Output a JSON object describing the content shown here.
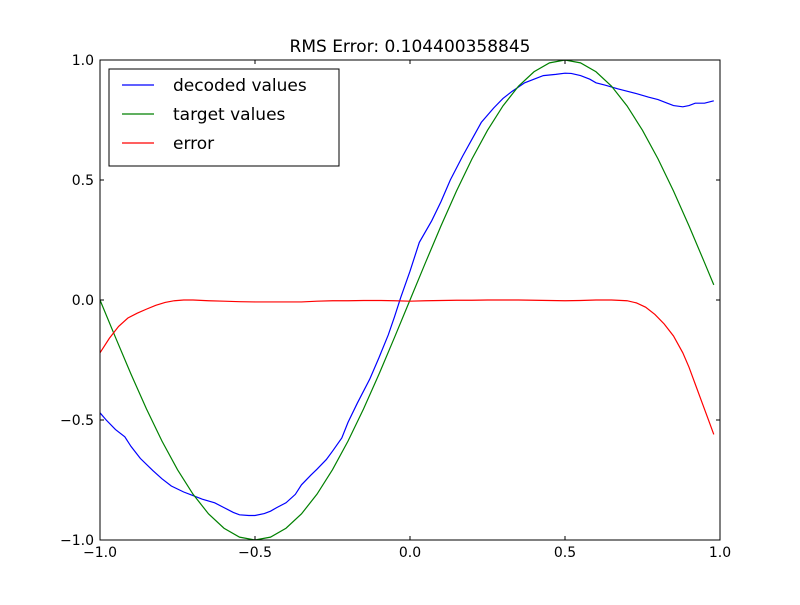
{
  "chart_data": {
    "type": "line",
    "title": "RMS Error: 0.104400358845",
    "xlabel": "",
    "ylabel": "",
    "xlim": [
      -1.0,
      1.0
    ],
    "ylim": [
      -1.0,
      1.0
    ],
    "xticks": [
      -1.0,
      -0.5,
      0.0,
      0.5,
      1.0
    ],
    "xtick_labels": [
      "−1.0",
      "−0.5",
      "0.0",
      "0.5",
      "1.0"
    ],
    "yticks": [
      -1.0,
      -0.5,
      0.0,
      0.5,
      1.0
    ],
    "ytick_labels": [
      "−1.0",
      "−0.5",
      "0.0",
      "0.5",
      "1.0"
    ],
    "grid": false,
    "legend_position": "upper-left",
    "series": [
      {
        "name": "decoded values",
        "color": "#0000ff",
        "x": [
          -1.0,
          -0.98,
          -0.95,
          -0.92,
          -0.9,
          -0.87,
          -0.83,
          -0.8,
          -0.77,
          -0.73,
          -0.7,
          -0.67,
          -0.63,
          -0.6,
          -0.57,
          -0.55,
          -0.52,
          -0.5,
          -0.47,
          -0.45,
          -0.43,
          -0.4,
          -0.37,
          -0.35,
          -0.32,
          -0.3,
          -0.27,
          -0.25,
          -0.22,
          -0.2,
          -0.17,
          -0.13,
          -0.1,
          -0.07,
          -0.05,
          -0.03,
          0.0,
          0.03,
          0.07,
          0.1,
          0.13,
          0.17,
          0.2,
          0.23,
          0.27,
          0.3,
          0.33,
          0.37,
          0.4,
          0.43,
          0.47,
          0.5,
          0.52,
          0.55,
          0.58,
          0.6,
          0.63,
          0.67,
          0.7,
          0.73,
          0.77,
          0.8,
          0.83,
          0.85,
          0.88,
          0.9,
          0.92,
          0.95,
          0.98
        ],
        "y": [
          -0.47,
          -0.5,
          -0.54,
          -0.57,
          -0.61,
          -0.66,
          -0.71,
          -0.745,
          -0.775,
          -0.8,
          -0.815,
          -0.83,
          -0.845,
          -0.865,
          -0.885,
          -0.895,
          -0.898,
          -0.898,
          -0.89,
          -0.88,
          -0.865,
          -0.845,
          -0.81,
          -0.77,
          -0.73,
          -0.705,
          -0.665,
          -0.63,
          -0.575,
          -0.51,
          -0.43,
          -0.33,
          -0.24,
          -0.145,
          -0.07,
          0.01,
          0.12,
          0.24,
          0.33,
          0.41,
          0.5,
          0.6,
          0.67,
          0.74,
          0.8,
          0.84,
          0.87,
          0.905,
          0.92,
          0.935,
          0.94,
          0.945,
          0.944,
          0.935,
          0.92,
          0.905,
          0.895,
          0.88,
          0.87,
          0.86,
          0.845,
          0.835,
          0.82,
          0.81,
          0.805,
          0.81,
          0.82,
          0.82,
          0.83
        ]
      },
      {
        "name": "target values",
        "color": "#008000",
        "x": [
          -1.0,
          -0.95,
          -0.9,
          -0.85,
          -0.8,
          -0.75,
          -0.7,
          -0.65,
          -0.6,
          -0.55,
          -0.5,
          -0.45,
          -0.4,
          -0.35,
          -0.3,
          -0.25,
          -0.2,
          -0.15,
          -0.1,
          -0.05,
          0.0,
          0.05,
          0.1,
          0.15,
          0.2,
          0.25,
          0.3,
          0.35,
          0.4,
          0.45,
          0.5,
          0.55,
          0.6,
          0.65,
          0.7,
          0.75,
          0.8,
          0.85,
          0.9,
          0.95,
          0.98
        ],
        "y": [
          0.0,
          -0.156,
          -0.309,
          -0.454,
          -0.588,
          -0.707,
          -0.809,
          -0.891,
          -0.951,
          -0.988,
          -1.0,
          -0.988,
          -0.951,
          -0.891,
          -0.809,
          -0.707,
          -0.588,
          -0.454,
          -0.309,
          -0.156,
          0.0,
          0.156,
          0.309,
          0.454,
          0.588,
          0.707,
          0.809,
          0.891,
          0.951,
          0.988,
          1.0,
          0.988,
          0.951,
          0.891,
          0.809,
          0.707,
          0.588,
          0.454,
          0.309,
          0.156,
          0.063
        ]
      },
      {
        "name": "error",
        "color": "#ff0000",
        "x": [
          -1.0,
          -0.97,
          -0.94,
          -0.91,
          -0.88,
          -0.85,
          -0.82,
          -0.79,
          -0.76,
          -0.73,
          -0.7,
          -0.65,
          -0.6,
          -0.55,
          -0.5,
          -0.45,
          -0.4,
          -0.35,
          -0.3,
          -0.25,
          -0.2,
          -0.15,
          -0.1,
          -0.05,
          0.0,
          0.05,
          0.1,
          0.15,
          0.2,
          0.25,
          0.3,
          0.35,
          0.4,
          0.45,
          0.5,
          0.55,
          0.6,
          0.65,
          0.7,
          0.73,
          0.76,
          0.79,
          0.82,
          0.85,
          0.88,
          0.9,
          0.92,
          0.94,
          0.96,
          0.98
        ],
        "y": [
          -0.22,
          -0.16,
          -0.11,
          -0.075,
          -0.055,
          -0.038,
          -0.022,
          -0.01,
          -0.003,
          0.0,
          0.0,
          -0.003,
          -0.005,
          -0.007,
          -0.008,
          -0.008,
          -0.008,
          -0.008,
          -0.005,
          -0.003,
          -0.003,
          -0.002,
          -0.002,
          -0.003,
          -0.005,
          -0.003,
          -0.002,
          -0.001,
          -0.001,
          0.0,
          0.0,
          0.0,
          -0.001,
          -0.002,
          -0.003,
          -0.002,
          0.0,
          0.0,
          -0.003,
          -0.012,
          -0.03,
          -0.06,
          -0.1,
          -0.15,
          -0.22,
          -0.28,
          -0.35,
          -0.42,
          -0.49,
          -0.56
        ]
      }
    ]
  }
}
